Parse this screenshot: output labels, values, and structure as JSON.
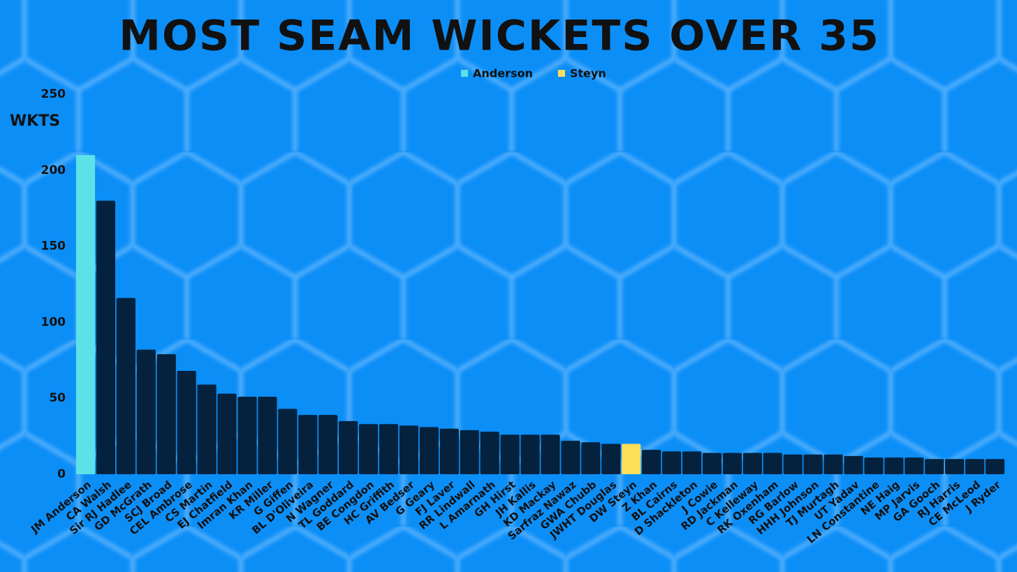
{
  "chart_data": {
    "type": "bar",
    "title": "MOST SEAM WICKETS OVER 35",
    "ylabel": "WKTS",
    "legend": [
      {
        "name": "Anderson",
        "color": "#5ce1e6"
      },
      {
        "name": "Steyn",
        "color": "#ffde59"
      }
    ],
    "categories": [
      "JM Anderson",
      "CA Walsh",
      "Sir RJ Hadlee",
      "GD McGrath",
      "SCJ Broad",
      "CEL Ambrose",
      "CS Martin",
      "EJ Chatfield",
      "Imran Khan",
      "KR Miller",
      "G Giffen",
      "BL D'Oliveira",
      "N Wagner",
      "TL Goddard",
      "BE Congdon",
      "HC Griffith",
      "AV Bedser",
      "G Geary",
      "FJ Laver",
      "RR Lindwall",
      "L Amarnath",
      "GH Hirst",
      "JH Kallis",
      "KD Mackay",
      "Sarfraz Nawaz",
      "GWA Chubb",
      "JWHT Douglas",
      "DW Steyn",
      "Z Khan",
      "BL Cairns",
      "D Shackleton",
      "J Cowie",
      "RD Jackman",
      "C Kelleway",
      "RK Oxenham",
      "RG Barlow",
      "HHH Johnson",
      "TJ Murtagh",
      "UT Yadav",
      "LN Constantine",
      "NE Haig",
      "MP Jarvis",
      "GA Gooch",
      "RJ Harris",
      "CE McLeod",
      "J Ryder"
    ],
    "values": [
      210,
      180,
      116,
      82,
      79,
      68,
      59,
      53,
      51,
      51,
      43,
      39,
      39,
      35,
      33,
      33,
      32,
      31,
      30,
      29,
      28,
      26,
      26,
      26,
      22,
      21,
      20,
      20,
      16,
      15,
      15,
      14,
      14,
      14,
      14,
      13,
      13,
      13,
      12,
      11,
      11,
      11,
      10,
      10,
      10,
      10
    ],
    "colors": [
      "#5ce1e6",
      "#04223d",
      "#04223d",
      "#04223d",
      "#04223d",
      "#04223d",
      "#04223d",
      "#04223d",
      "#04223d",
      "#04223d",
      "#04223d",
      "#04223d",
      "#04223d",
      "#04223d",
      "#04223d",
      "#04223d",
      "#04223d",
      "#04223d",
      "#04223d",
      "#04223d",
      "#04223d",
      "#04223d",
      "#04223d",
      "#04223d",
      "#04223d",
      "#04223d",
      "#04223d",
      "#ffde59",
      "#04223d",
      "#04223d",
      "#04223d",
      "#04223d",
      "#04223d",
      "#04223d",
      "#04223d",
      "#04223d",
      "#04223d",
      "#04223d",
      "#04223d",
      "#04223d",
      "#04223d",
      "#04223d",
      "#04223d",
      "#04223d",
      "#04223d",
      "#04223d"
    ],
    "ylim": [
      0,
      250
    ],
    "yticks": [
      0,
      50,
      100,
      150,
      200,
      250
    ],
    "grid": false
  }
}
